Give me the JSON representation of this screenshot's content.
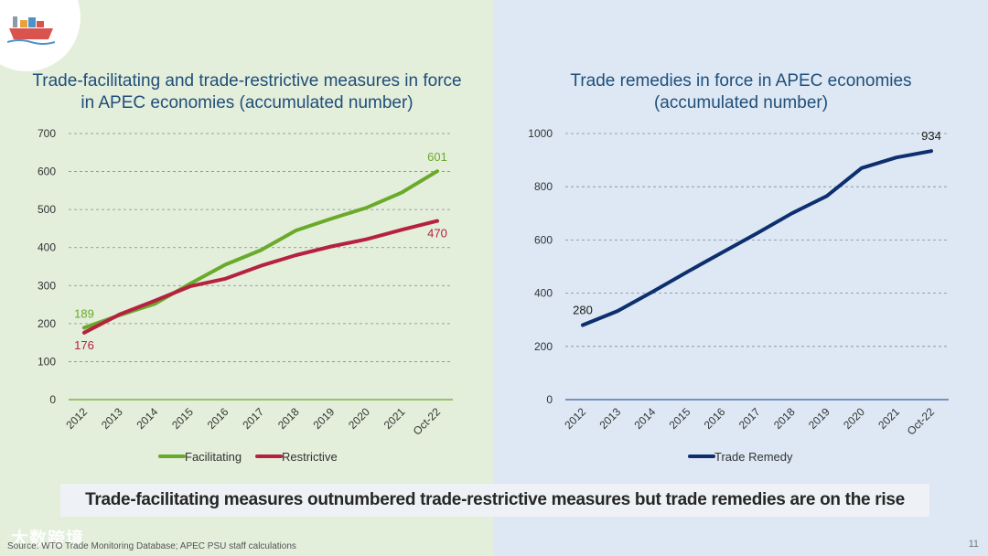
{
  "slide": {
    "page_number": "11",
    "banner": "Trade-facilitating measures outnumbered trade-restrictive measures but trade remedies are on the rise",
    "source": "Source: WTO Trade Monitoring Database; APEC PSU staff calculations",
    "watermark": "大数跨境",
    "logo_icon": "cargo-ship-icon"
  },
  "chart_data": [
    {
      "type": "line",
      "title": "Trade-facilitating and trade-restrictive measures in force in APEC economies (accumulated number)",
      "categories": [
        "2012",
        "2013",
        "2014",
        "2015",
        "2016",
        "2017",
        "2018",
        "2019",
        "2020",
        "2021",
        "Oct-22"
      ],
      "yticks": [
        "0",
        "100",
        "200",
        "300",
        "400",
        "500",
        "600",
        "700"
      ],
      "ylim": [
        0,
        700
      ],
      "grid": true,
      "legend_position": "bottom",
      "series": [
        {
          "name": "Facilitating",
          "color": "#6aaa2a",
          "values": [
            189,
            222,
            252,
            305,
            355,
            393,
            445,
            476,
            505,
            545,
            601
          ],
          "labels": [
            "189",
            "601"
          ]
        },
        {
          "name": "Restrictive",
          "color": "#b5213f",
          "values": [
            176,
            224,
            260,
            298,
            318,
            352,
            380,
            403,
            422,
            447,
            470
          ],
          "labels": [
            "176",
            "470"
          ]
        }
      ]
    },
    {
      "type": "line",
      "title": "Trade remedies in force in APEC economies (accumulated number)",
      "categories": [
        "2012",
        "2013",
        "2014",
        "2015",
        "2016",
        "2017",
        "2018",
        "2019",
        "2020",
        "2021",
        "Oct-22"
      ],
      "yticks": [
        "0",
        "200",
        "400",
        "600",
        "800",
        "1000"
      ],
      "ylim": [
        0,
        1000
      ],
      "grid": true,
      "legend_position": "bottom",
      "series": [
        {
          "name": "Trade Remedy",
          "color": "#0d2f6e",
          "values": [
            280,
            333,
            405,
            480,
            553,
            625,
            700,
            765,
            870,
            910,
            934
          ],
          "labels": [
            "280",
            "934"
          ]
        }
      ]
    }
  ]
}
